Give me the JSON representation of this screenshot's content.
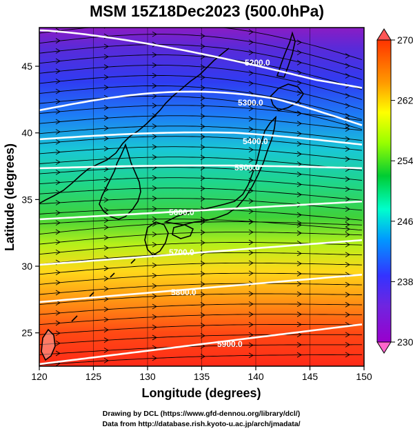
{
  "title": "MSM 15Z18Dec2023 (500.0hPa)",
  "x_axis": {
    "label": "Longitude (degrees)",
    "range": [
      120,
      150
    ],
    "ticks": [
      "120",
      "125",
      "130",
      "135",
      "140",
      "145",
      "150"
    ]
  },
  "y_axis": {
    "label": "Latitude  (degrees)",
    "range": [
      22.5,
      47.9
    ],
    "ticks": [
      "25",
      "30",
      "35",
      "40",
      "45"
    ]
  },
  "colorbar": {
    "range": [
      230,
      270
    ],
    "labels": [
      "270",
      "262",
      "254",
      "246",
      "238",
      "230"
    ],
    "colors": [
      "#ff66cc",
      "#9900cc",
      "#3333ff",
      "#0099ff",
      "#00ffcc",
      "#00cc33",
      "#99ff00",
      "#ffff00",
      "#ff9900",
      "#ff3300",
      "#ff3333"
    ]
  },
  "contours": [
    {
      "label": "5200.0",
      "value": 5200
    },
    {
      "label": "5300.0",
      "value": 5300
    },
    {
      "label": "5400.0",
      "value": 5400
    },
    {
      "label": "5500.0",
      "value": 5500
    },
    {
      "label": "5600.0",
      "value": 5600
    },
    {
      "label": "5700.0",
      "value": 5700
    },
    {
      "label": "5800.0",
      "value": 5800
    },
    {
      "label": "5900.0",
      "value": 5900
    }
  ],
  "credits": {
    "line1": "Drawing by DCL (https://www.gfd-dennou.org/library/dcl/)",
    "line2": "Data from http://database.rish.kyoto-u.ac.jp/arch/jmadata/"
  }
}
